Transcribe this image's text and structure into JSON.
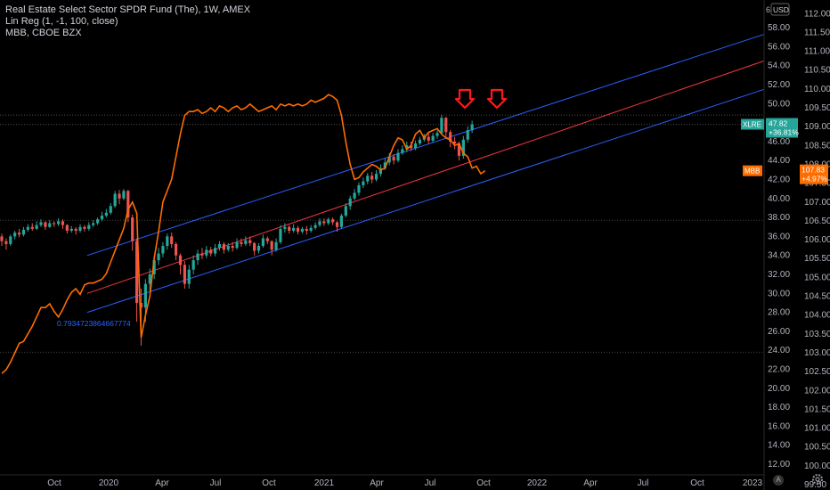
{
  "legend": {
    "line1": "Real Estate Select Sector SPDR Fund (The), 1W, AMEX",
    "line2": "Lin Reg (1, -1, 100, close)",
    "line3": "MBB, CBOE BZX"
  },
  "currency_badge": "USD",
  "currency_prefix": "6",
  "auto_button": "A",
  "chart_data": {
    "type": "candlestick",
    "title": "Real Estate Select Sector SPDR Fund (The), 1W, AMEX",
    "x_ticks": [
      "Oct",
      "2020",
      "Apr",
      "Jul",
      "Oct",
      "2021",
      "Apr",
      "Jul",
      "Oct",
      "2022",
      "Apr",
      "Jul",
      "Oct",
      "2023"
    ],
    "right_axis_outer": {
      "label": "MBB",
      "ticks": [
        "112.00",
        "111.50",
        "111.00",
        "110.50",
        "110.00",
        "109.50",
        "109.00",
        "108.50",
        "108.00",
        "107.50",
        "107.00",
        "106.50",
        "106.00",
        "105.50",
        "105.00",
        "104.50",
        "104.00",
        "103.50",
        "103.00",
        "102.50",
        "102.00",
        "101.50",
        "101.00",
        "100.50",
        "100.00",
        "99.50"
      ]
    },
    "right_axis_inner": {
      "label": "XLRE",
      "ticks": [
        "58.00",
        "56.00",
        "54.00",
        "52.00",
        "50.00",
        "48.00",
        "46.00",
        "44.00",
        "42.00",
        "40.00",
        "38.00",
        "36.00",
        "34.00",
        "32.00",
        "30.00",
        "28.00",
        "26.00",
        "24.00",
        "22.00",
        "20.00",
        "18.00",
        "16.00",
        "14.00",
        "12.00"
      ]
    },
    "xlre_price_label": "XLRE",
    "xlre_last": "47.82",
    "xlre_change": "+36.81%",
    "mbb_price_label": "MBB",
    "mbb_last": "107.83",
    "mbb_change": "+4.97%",
    "regression_annotation": "0.7934723864667774",
    "candles": [
      [
        36.0,
        35.5,
        36.3,
        35.0
      ],
      [
        35.5,
        35.2,
        35.8,
        34.6
      ],
      [
        35.2,
        36.0,
        36.2,
        35.0
      ],
      [
        36.0,
        36.4,
        36.6,
        35.7
      ],
      [
        36.4,
        36.2,
        36.8,
        35.9
      ],
      [
        36.2,
        36.7,
        37.0,
        36.0
      ],
      [
        36.7,
        37.0,
        37.3,
        36.5
      ],
      [
        37.0,
        36.8,
        37.4,
        36.6
      ],
      [
        36.8,
        37.2,
        37.6,
        36.7
      ],
      [
        37.2,
        37.5,
        37.8,
        37.0
      ],
      [
        37.5,
        37.0,
        37.6,
        36.7
      ],
      [
        37.0,
        37.4,
        37.7,
        36.9
      ],
      [
        37.4,
        37.3,
        37.6,
        37.0
      ],
      [
        37.3,
        37.6,
        37.9,
        37.1
      ],
      [
        37.6,
        37.2,
        37.8,
        36.8
      ],
      [
        37.2,
        36.6,
        37.3,
        36.3
      ],
      [
        36.6,
        36.8,
        37.1,
        36.4
      ],
      [
        36.8,
        36.6,
        37.0,
        36.2
      ],
      [
        36.6,
        37.0,
        37.3,
        36.4
      ],
      [
        37.0,
        36.8,
        37.2,
        36.5
      ],
      [
        36.8,
        37.2,
        37.5,
        36.6
      ],
      [
        37.2,
        37.4,
        37.7,
        37.0
      ],
      [
        37.4,
        37.8,
        38.0,
        37.2
      ],
      [
        37.8,
        38.2,
        38.6,
        37.6
      ],
      [
        38.2,
        38.5,
        38.9,
        38.0
      ],
      [
        38.5,
        39.2,
        39.5,
        38.3
      ],
      [
        39.2,
        40.5,
        40.8,
        39.0
      ],
      [
        40.5,
        40.0,
        40.9,
        39.4
      ],
      [
        40.0,
        40.8,
        41.0,
        39.8
      ],
      [
        40.8,
        38.0,
        40.9,
        37.5
      ],
      [
        38.0,
        35.5,
        38.3,
        34.5
      ],
      [
        35.5,
        29.0,
        35.8,
        27.0
      ],
      [
        29.0,
        28.5,
        30.5,
        24.5
      ],
      [
        28.5,
        31.0,
        31.5,
        27.0
      ],
      [
        31.0,
        32.0,
        32.6,
        30.2
      ],
      [
        32.0,
        33.5,
        34.0,
        31.5
      ],
      [
        33.5,
        34.2,
        34.8,
        33.0
      ],
      [
        34.2,
        35.0,
        35.4,
        33.8
      ],
      [
        35.0,
        36.0,
        36.3,
        34.6
      ],
      [
        36.0,
        35.2,
        36.4,
        34.8
      ],
      [
        35.2,
        34.0,
        35.4,
        33.5
      ],
      [
        34.0,
        33.0,
        34.2,
        32.0
      ],
      [
        33.0,
        31.0,
        33.4,
        30.5
      ],
      [
        31.0,
        32.5,
        33.0,
        30.5
      ],
      [
        32.5,
        33.5,
        34.0,
        32.0
      ],
      [
        33.5,
        34.2,
        34.6,
        33.0
      ],
      [
        34.2,
        34.0,
        34.8,
        33.6
      ],
      [
        34.0,
        34.6,
        35.0,
        33.7
      ],
      [
        34.6,
        34.2,
        34.9,
        33.9
      ],
      [
        34.2,
        34.8,
        35.2,
        33.9
      ],
      [
        34.8,
        35.2,
        35.5,
        34.5
      ],
      [
        35.2,
        34.6,
        35.4,
        34.2
      ],
      [
        34.6,
        35.0,
        35.3,
        34.4
      ],
      [
        35.0,
        34.8,
        35.4,
        34.4
      ],
      [
        34.8,
        35.4,
        35.8,
        34.6
      ],
      [
        35.4,
        35.2,
        35.8,
        34.9
      ],
      [
        35.2,
        35.6,
        36.0,
        35.0
      ],
      [
        35.6,
        35.3,
        36.0,
        35.0
      ],
      [
        35.3,
        34.5,
        35.4,
        34.0
      ],
      [
        34.5,
        35.0,
        35.3,
        34.2
      ],
      [
        35.0,
        35.8,
        36.2,
        34.8
      ],
      [
        35.8,
        35.5,
        36.0,
        35.2
      ],
      [
        35.5,
        34.6,
        35.6,
        34.0
      ],
      [
        34.6,
        35.4,
        35.8,
        34.4
      ],
      [
        35.4,
        36.8,
        37.2,
        35.2
      ],
      [
        36.8,
        37.0,
        37.4,
        36.4
      ],
      [
        37.0,
        36.6,
        37.2,
        36.3
      ],
      [
        36.6,
        36.9,
        37.3,
        36.4
      ],
      [
        36.9,
        36.5,
        37.1,
        36.2
      ],
      [
        36.5,
        36.8,
        37.0,
        36.3
      ],
      [
        36.8,
        36.6,
        37.1,
        36.2
      ],
      [
        36.6,
        36.9,
        37.2,
        36.4
      ],
      [
        36.9,
        37.2,
        37.5,
        36.7
      ],
      [
        37.2,
        37.6,
        37.9,
        37.0
      ],
      [
        37.6,
        37.4,
        37.9,
        37.1
      ],
      [
        37.4,
        37.8,
        38.0,
        37.2
      ],
      [
        37.8,
        37.5,
        38.0,
        37.2
      ],
      [
        37.5,
        37.0,
        37.6,
        36.5
      ],
      [
        37.0,
        38.2,
        38.4,
        36.8
      ],
      [
        38.2,
        39.2,
        39.5,
        38.0
      ],
      [
        39.2,
        40.0,
        40.3,
        38.8
      ],
      [
        40.0,
        40.6,
        41.0,
        39.8
      ],
      [
        40.6,
        41.4,
        41.7,
        40.3
      ],
      [
        41.4,
        41.8,
        42.2,
        41.1
      ],
      [
        41.8,
        42.4,
        42.7,
        41.5
      ],
      [
        42.4,
        42.0,
        42.8,
        41.6
      ],
      [
        42.0,
        42.6,
        43.0,
        41.8
      ],
      [
        42.6,
        43.2,
        43.6,
        42.3
      ],
      [
        43.2,
        43.8,
        44.2,
        43.0
      ],
      [
        43.8,
        44.4,
        44.8,
        43.5
      ],
      [
        44.4,
        44.0,
        44.7,
        43.6
      ],
      [
        44.0,
        44.8,
        45.2,
        43.8
      ],
      [
        44.8,
        45.2,
        45.6,
        44.6
      ],
      [
        45.2,
        45.6,
        46.0,
        44.9
      ],
      [
        45.6,
        45.3,
        46.0,
        45.0
      ],
      [
        45.3,
        45.8,
        46.1,
        45.1
      ],
      [
        45.8,
        46.2,
        46.5,
        45.6
      ],
      [
        46.2,
        46.5,
        46.8,
        46.0
      ],
      [
        46.5,
        46.1,
        46.9,
        45.8
      ],
      [
        46.1,
        46.6,
        46.9,
        45.9
      ],
      [
        46.6,
        46.9,
        47.2,
        46.3
      ],
      [
        46.9,
        48.5,
        48.8,
        46.7
      ],
      [
        48.5,
        47.0,
        48.6,
        46.4
      ],
      [
        47.0,
        46.0,
        47.2,
        45.4
      ],
      [
        46.0,
        45.8,
        46.5,
        45.2
      ],
      [
        45.8,
        44.5,
        46.0,
        44.0
      ],
      [
        44.5,
        46.2,
        46.6,
        44.2
      ],
      [
        46.2,
        47.2,
        47.6,
        45.9
      ],
      [
        47.2,
        47.8,
        48.2,
        46.9
      ]
    ],
    "linreg_mid": {
      "start_price": 30.0,
      "end_price": 54.5
    },
    "linreg_upper": {
      "start_price": 34.0,
      "end_price": 57.3
    },
    "linreg_lower": {
      "start_price": 28.0,
      "end_price": 51.5
    },
    "mbb_series": [
      102.45,
      102.55,
      102.75,
      103.0,
      103.25,
      103.3,
      103.5,
      103.7,
      103.95,
      104.2,
      104.2,
      104.3,
      104.1,
      103.95,
      104.15,
      104.4,
      104.6,
      104.7,
      104.55,
      104.8,
      104.85,
      104.85,
      104.9,
      104.95,
      105.1,
      105.4,
      105.7,
      106.0,
      106.3,
      106.8,
      107.0,
      106.7,
      103.4,
      104.0,
      104.5,
      105.5,
      106.2,
      107.0,
      107.3,
      107.6,
      108.2,
      108.8,
      109.3,
      109.4,
      109.4,
      109.45,
      109.35,
      109.4,
      109.5,
      109.4,
      109.55,
      109.5,
      109.4,
      109.5,
      109.55,
      109.45,
      109.5,
      109.6,
      109.5,
      109.4,
      109.45,
      109.5,
      109.55,
      109.45,
      109.6,
      109.55,
      109.6,
      109.55,
      109.6,
      109.55,
      109.6,
      109.7,
      109.65,
      109.7,
      109.75,
      109.85,
      109.8,
      109.7,
      109.3,
      108.6,
      108.0,
      107.6,
      107.65,
      107.8,
      107.9,
      108.0,
      107.95,
      107.85,
      107.9,
      108.2,
      108.5,
      108.7,
      108.65,
      108.4,
      108.5,
      108.8,
      108.9,
      108.7,
      108.85,
      108.9,
      108.95,
      108.8,
      108.7,
      108.65,
      108.5,
      108.55,
      108.3,
      108.2,
      107.9,
      107.95,
      107.75,
      107.83
    ]
  }
}
